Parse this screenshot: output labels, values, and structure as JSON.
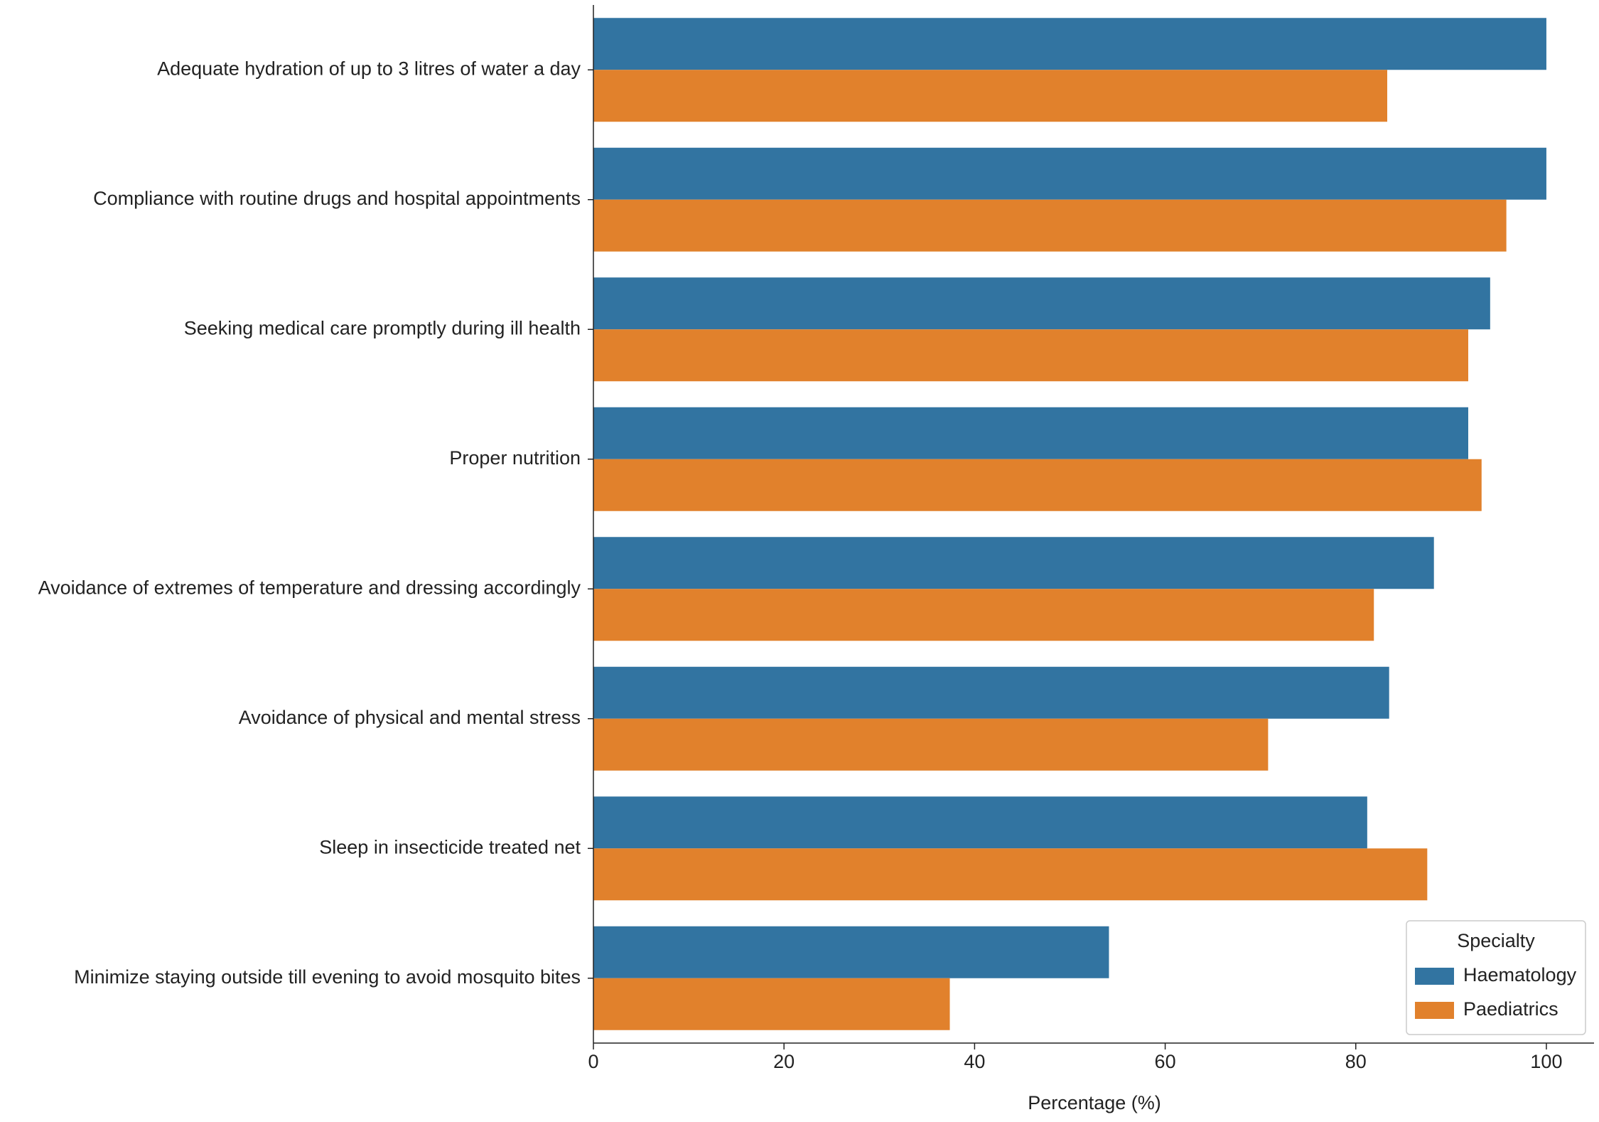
{
  "chart_data": {
    "type": "barh",
    "xlabel": "Percentage (%)",
    "categories": [
      "Adequate hydration of up to 3 litres of water a day",
      "Compliance with routine drugs and hospital appointments",
      "Seeking medical care promptly  during ill health",
      "Proper nutrition",
      "Avoidance of extremes of temperature and dressing accordingly",
      "Avoidance of physical and mental stress",
      "Sleep in insecticide treated net",
      "Minimize staying outside till evening to avoid mosquito bites"
    ],
    "series": [
      {
        "name": "Haematology",
        "color": "#3274a1",
        "values": [
          100,
          100,
          94.1,
          91.8,
          88.2,
          83.5,
          81.2,
          54.1
        ]
      },
      {
        "name": "Paediatrics",
        "color": "#e1812c",
        "values": [
          83.3,
          95.8,
          91.8,
          93.2,
          81.9,
          70.8,
          87.5,
          37.4
        ]
      }
    ],
    "xlim": [
      0,
      105
    ],
    "xticks": [
      0,
      20,
      40,
      60,
      80,
      100
    ],
    "legend_title": "Specialty",
    "legend": "lower right"
  }
}
